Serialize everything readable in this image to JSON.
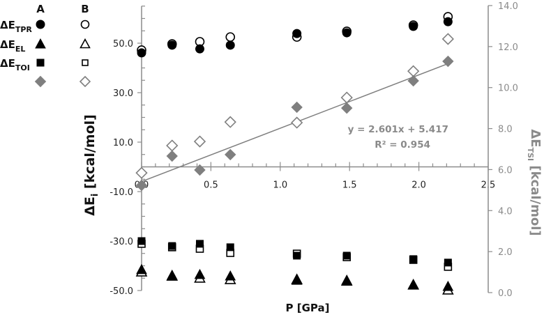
{
  "chart_data": {
    "type": "scatter",
    "title": "",
    "xlabel": "P [GPa]",
    "ylabel": "ΔE_i [kcal/mol]",
    "ylabel_right": "ΔE_TSI [kcal/mol]",
    "xlim": [
      0.0,
      2.5
    ],
    "ylim": [
      -50.0,
      65.0
    ],
    "ylim_right": [
      0.0,
      14.0
    ],
    "x_ticks": [
      "0.0",
      "0.5",
      "1.0",
      "1.5",
      "2.0",
      "2.5"
    ],
    "y_ticks": [
      "50.0",
      "30.0",
      "10.0",
      "-10.0",
      "-30.0",
      "-50.0"
    ],
    "y_ticks_right": [
      "14.0",
      "12.0",
      "10.0",
      "8.0",
      "6.0",
      "4.0",
      "2.0",
      "0.0"
    ],
    "grid": false,
    "legend": {
      "position": "top-left",
      "column_headers": [
        "A",
        "B"
      ],
      "rows": [
        {
          "label": "ΔE",
          "sub": "TPR",
          "marker": "circle"
        },
        {
          "label": "ΔE",
          "sub": "EL",
          "marker": "triangle"
        },
        {
          "label": "ΔE",
          "sub": "TOI",
          "marker": "square"
        },
        {
          "label": "",
          "sub": "",
          "marker": "diamond"
        }
      ]
    },
    "x": [
      0.0,
      0.22,
      0.42,
      0.64,
      1.12,
      1.48,
      1.96,
      2.21
    ],
    "series": [
      {
        "name": "ΔE_TPR (A)",
        "marker": "circle",
        "filled": true,
        "color": "#000000",
        "axis": "left",
        "values": [
          46.1,
          49.2,
          47.7,
          49.2,
          53.9,
          54.2,
          56.8,
          58.7
        ]
      },
      {
        "name": "ΔE_TPR (B)",
        "marker": "circle",
        "filled": false,
        "color": "#000000",
        "axis": "left",
        "values": [
          47.2,
          49.7,
          50.6,
          52.5,
          52.5,
          54.8,
          57.3,
          60.7
        ]
      },
      {
        "name": "ΔE_EL (A)",
        "marker": "triangle",
        "filled": true,
        "color": "#000000",
        "axis": "left",
        "values": [
          -41.5,
          -43.8,
          -43.5,
          -44.1,
          -45.8,
          -45.8,
          -47.5,
          -48.3
        ]
      },
      {
        "name": "ΔE_EL (B)",
        "marker": "triangle",
        "filled": false,
        "color": "#000000",
        "axis": "left",
        "values": [
          -42.4,
          -44.1,
          -44.9,
          -45.5,
          -45.5,
          -46.1,
          -47.7,
          -49.7
        ]
      },
      {
        "name": "ΔE_TOI (A)",
        "marker": "square",
        "filled": true,
        "color": "#000000",
        "axis": "left",
        "values": [
          -30.0,
          -32.0,
          -31.1,
          -32.5,
          -35.9,
          -35.9,
          -37.3,
          -38.7
        ]
      },
      {
        "name": "ΔE_TOI (B)",
        "marker": "square",
        "filled": false,
        "color": "#000000",
        "axis": "left",
        "values": [
          -31.1,
          -32.5,
          -33.1,
          -34.8,
          -35.1,
          -36.5,
          -37.6,
          -40.4
        ]
      },
      {
        "name": "ΔE_TSI (A)",
        "marker": "diamond",
        "filled": true,
        "color": "#7f7f7f",
        "axis": "right",
        "values": [
          5.23,
          6.66,
          5.98,
          6.73,
          9.04,
          9.0,
          10.33,
          11.28
        ]
      },
      {
        "name": "ΔE_TSI (B)",
        "marker": "diamond",
        "filled": false,
        "color": "#7f7f7f",
        "axis": "right",
        "values": [
          5.84,
          7.17,
          7.37,
          8.32,
          8.29,
          9.51,
          10.8,
          12.37
        ]
      }
    ],
    "trendline": {
      "series": "ΔE_TSI (A)",
      "axis": "right",
      "slope": 2.601,
      "intercept": 5.417,
      "x_range": [
        0.0,
        2.21
      ],
      "equation": "y = 2.601x + 5.417",
      "r2": "R² = 0.954",
      "color": "#7f7f7f"
    },
    "annotations": [
      "y = 2.601x + 5.417",
      "R² = 0.954"
    ]
  },
  "labels": {
    "legend_col_a": "A",
    "legend_col_b": "B",
    "x_axis_title": "P [GPa]",
    "equation": "y = 2.601x + 5.417",
    "r_squared": "R² = 0.954"
  },
  "colors": {
    "primary": "#000000",
    "secondary": "#7f7f7f",
    "axis_left": "#8c8c8c",
    "axis_right": "#8c8c8c"
  }
}
